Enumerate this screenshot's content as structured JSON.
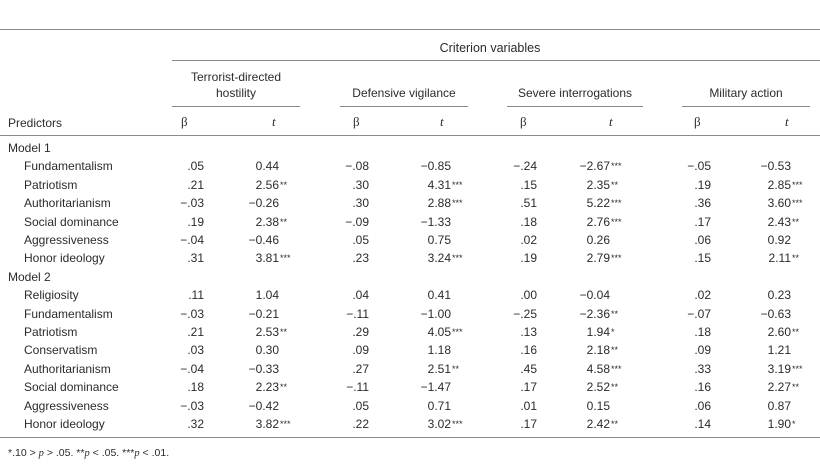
{
  "header": {
    "criterion_title": "Criterion variables",
    "predictors_label": "Predictors",
    "beta_symbol": "β",
    "t_symbol": "t",
    "criteria": [
      {
        "line1": "Terrorist-directed",
        "line2": "hostility"
      },
      {
        "line1": "Defensive vigilance",
        "line2": ""
      },
      {
        "line1": "Severe interrogations",
        "line2": ""
      },
      {
        "line1": "Military action",
        "line2": ""
      }
    ]
  },
  "models": [
    {
      "label": "Model 1",
      "rows": [
        {
          "predictor": "Fundamentalism",
          "cells": [
            [
              ".05",
              ""
            ],
            [
              "0.44",
              ""
            ],
            [
              "−.08",
              ""
            ],
            [
              "−0.85",
              ""
            ],
            [
              "−.24",
              ""
            ],
            [
              "−2.67",
              "***"
            ],
            [
              "−.05",
              ""
            ],
            [
              "−0.53",
              ""
            ]
          ]
        },
        {
          "predictor": "Patriotism",
          "cells": [
            [
              ".21",
              ""
            ],
            [
              "2.56",
              "**"
            ],
            [
              ".30",
              ""
            ],
            [
              "4.31",
              "***"
            ],
            [
              ".15",
              ""
            ],
            [
              "2.35",
              "**"
            ],
            [
              ".19",
              ""
            ],
            [
              "2.85",
              "***"
            ]
          ]
        },
        {
          "predictor": "Authoritarianism",
          "cells": [
            [
              "−.03",
              ""
            ],
            [
              "−0.26",
              ""
            ],
            [
              ".30",
              ""
            ],
            [
              "2.88",
              "***"
            ],
            [
              ".51",
              ""
            ],
            [
              "5.22",
              "***"
            ],
            [
              ".36",
              ""
            ],
            [
              "3.60",
              "***"
            ]
          ]
        },
        {
          "predictor": "Social dominance",
          "cells": [
            [
              ".19",
              ""
            ],
            [
              "2.38",
              "**"
            ],
            [
              "−.09",
              ""
            ],
            [
              "−1.33",
              ""
            ],
            [
              ".18",
              ""
            ],
            [
              "2.76",
              "***"
            ],
            [
              ".17",
              ""
            ],
            [
              "2.43",
              "**"
            ]
          ]
        },
        {
          "predictor": "Aggressiveness",
          "cells": [
            [
              "−.04",
              ""
            ],
            [
              "−0.46",
              ""
            ],
            [
              ".05",
              ""
            ],
            [
              "0.75",
              ""
            ],
            [
              ".02",
              ""
            ],
            [
              "0.26",
              ""
            ],
            [
              ".06",
              ""
            ],
            [
              "0.92",
              ""
            ]
          ]
        },
        {
          "predictor": "Honor ideology",
          "cells": [
            [
              ".31",
              ""
            ],
            [
              "3.81",
              "***"
            ],
            [
              ".23",
              ""
            ],
            [
              "3.24",
              "***"
            ],
            [
              ".19",
              ""
            ],
            [
              "2.79",
              "***"
            ],
            [
              ".15",
              ""
            ],
            [
              "2.11",
              "**"
            ]
          ]
        }
      ]
    },
    {
      "label": "Model 2",
      "rows": [
        {
          "predictor": "Religiosity",
          "cells": [
            [
              ".11",
              ""
            ],
            [
              "1.04",
              ""
            ],
            [
              ".04",
              ""
            ],
            [
              "0.41",
              ""
            ],
            [
              ".00",
              ""
            ],
            [
              "−0.04",
              ""
            ],
            [
              ".02",
              ""
            ],
            [
              "0.23",
              ""
            ]
          ]
        },
        {
          "predictor": "Fundamentalism",
          "cells": [
            [
              "−.03",
              ""
            ],
            [
              "−0.21",
              ""
            ],
            [
              "−.11",
              ""
            ],
            [
              "−1.00",
              ""
            ],
            [
              "−.25",
              ""
            ],
            [
              "−2.36",
              "**"
            ],
            [
              "−.07",
              ""
            ],
            [
              "−0.63",
              ""
            ]
          ]
        },
        {
          "predictor": "Patriotism",
          "cells": [
            [
              ".21",
              ""
            ],
            [
              "2.53",
              "**"
            ],
            [
              ".29",
              ""
            ],
            [
              "4.05",
              "***"
            ],
            [
              ".13",
              ""
            ],
            [
              "1.94",
              "*"
            ],
            [
              ".18",
              ""
            ],
            [
              "2.60",
              "**"
            ]
          ]
        },
        {
          "predictor": "Conservatism",
          "cells": [
            [
              ".03",
              ""
            ],
            [
              "0.30",
              ""
            ],
            [
              ".09",
              ""
            ],
            [
              "1.18",
              ""
            ],
            [
              ".16",
              ""
            ],
            [
              "2.18",
              "**"
            ],
            [
              ".09",
              ""
            ],
            [
              "1.21",
              ""
            ]
          ]
        },
        {
          "predictor": "Authoritarianism",
          "cells": [
            [
              "−.04",
              ""
            ],
            [
              "−0.33",
              ""
            ],
            [
              ".27",
              ""
            ],
            [
              "2.51",
              "**"
            ],
            [
              ".45",
              ""
            ],
            [
              "4.58",
              "***"
            ],
            [
              ".33",
              ""
            ],
            [
              "3.19",
              "***"
            ]
          ]
        },
        {
          "predictor": "Social dominance",
          "cells": [
            [
              ".18",
              ""
            ],
            [
              "2.23",
              "**"
            ],
            [
              "−.11",
              ""
            ],
            [
              "−1.47",
              ""
            ],
            [
              ".17",
              ""
            ],
            [
              "2.52",
              "**"
            ],
            [
              ".16",
              ""
            ],
            [
              "2.27",
              "**"
            ]
          ]
        },
        {
          "predictor": "Aggressiveness",
          "cells": [
            [
              "−.03",
              ""
            ],
            [
              "−0.42",
              ""
            ],
            [
              ".05",
              ""
            ],
            [
              "0.71",
              ""
            ],
            [
              ".01",
              ""
            ],
            [
              "0.15",
              ""
            ],
            [
              ".06",
              ""
            ],
            [
              "0.87",
              ""
            ]
          ]
        },
        {
          "predictor": "Honor ideology",
          "cells": [
            [
              ".32",
              ""
            ],
            [
              "3.82",
              "***"
            ],
            [
              ".22",
              ""
            ],
            [
              "3.02",
              "***"
            ],
            [
              ".17",
              ""
            ],
            [
              "2.42",
              "**"
            ],
            [
              ".14",
              ""
            ],
            [
              "1.90",
              "*"
            ]
          ]
        }
      ]
    }
  ],
  "footnote": {
    "part1": "*.10 > ",
    "p1": "p",
    "part2": " > .05. **",
    "p2": "p",
    "part3": " < .05. ***",
    "p3": "p",
    "part4": " < .01."
  }
}
